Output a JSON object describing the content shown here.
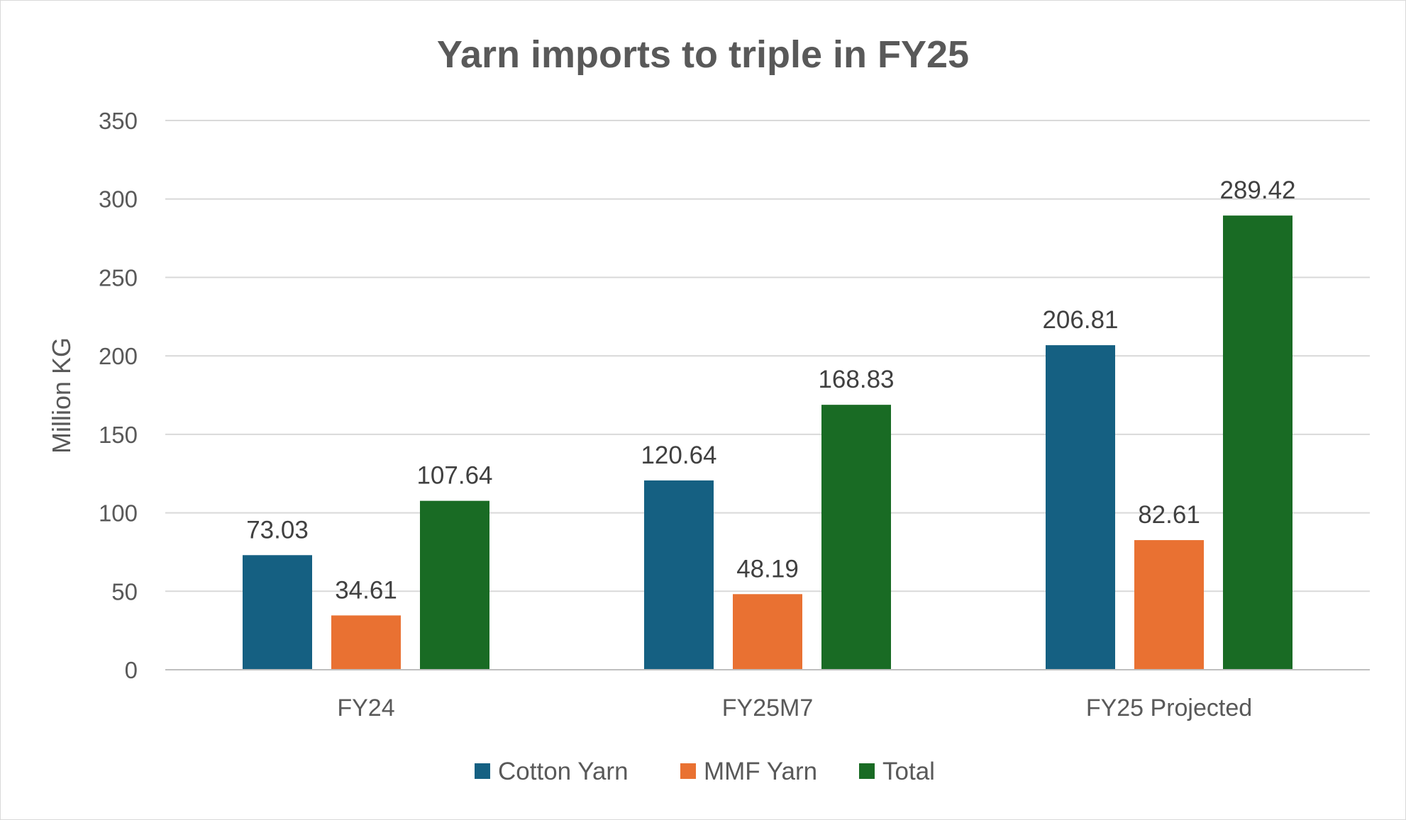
{
  "chart_data": {
    "type": "bar",
    "title": "Yarn imports to triple in FY25",
    "xlabel": "",
    "ylabel": "Million KG",
    "ylim": [
      0,
      350
    ],
    "yticks": [
      0,
      50,
      100,
      150,
      200,
      250,
      300,
      350
    ],
    "grid": true,
    "legend_position": "bottom",
    "categories": [
      "FY24",
      "FY25M7",
      "FY25 Projected"
    ],
    "series": [
      {
        "name": "Cotton Yarn",
        "color": "#156082",
        "values": [
          73.03,
          120.64,
          206.81
        ],
        "labels": [
          "73.03",
          "120.64",
          "206.81"
        ]
      },
      {
        "name": "MMF Yarn",
        "color": "#E97132",
        "values": [
          34.61,
          48.19,
          82.61
        ],
        "labels": [
          "34.61",
          "48.19",
          "82.61"
        ]
      },
      {
        "name": "Total",
        "color": "#196B24",
        "values": [
          107.64,
          168.83,
          289.42
        ],
        "labels": [
          "107.64",
          "168.83",
          "289.42"
        ]
      }
    ]
  }
}
